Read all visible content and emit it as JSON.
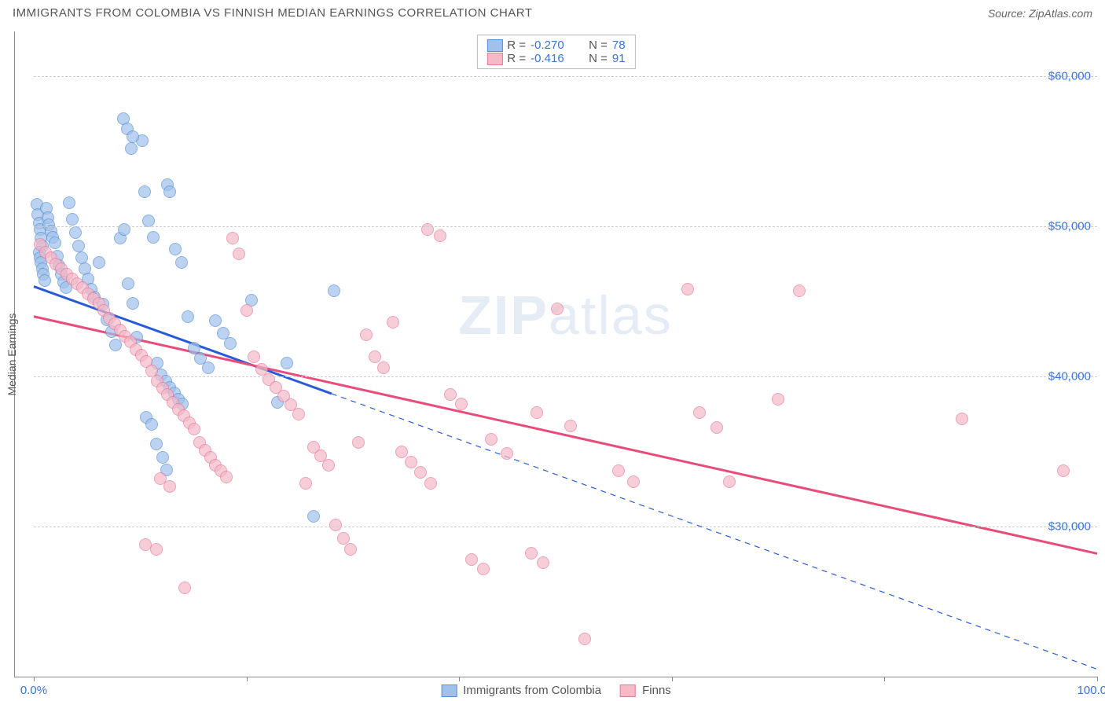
{
  "header": {
    "title": "IMMIGRANTS FROM COLOMBIA VS FINNISH MEDIAN EARNINGS CORRELATION CHART",
    "source": "Source: ZipAtlas.com"
  },
  "watermark": {
    "bold": "ZIP",
    "rest": "atlas"
  },
  "chart": {
    "type": "scatter",
    "ylabel": "Median Earnings",
    "background_color": "#ffffff",
    "grid_color": "#cccccc",
    "axis_line_color": "#888888",
    "tick_label_color": "#3874d6",
    "xlim": [
      0,
      100
    ],
    "ylim": [
      20000,
      63000
    ],
    "xticks_pct": [
      0,
      20,
      40,
      60,
      80,
      100
    ],
    "xtick_labels": {
      "first": "0.0%",
      "last": "100.0%"
    },
    "yticks": [
      30000,
      40000,
      50000,
      60000
    ],
    "ytick_labels": [
      "$30,000",
      "$40,000",
      "$50,000",
      "$60,000"
    ],
    "marker_radius": 8,
    "marker_fill_opacity": 0.35,
    "marker_stroke_width": 1.3,
    "series": [
      {
        "key": "colombia",
        "label": "Immigrants from Colombia",
        "color_fill": "#9fc1ea",
        "color_stroke": "#5a8fd6",
        "trend_color": "#2a5bd7",
        "trend_width": 3,
        "trend_dash_after_x": 28,
        "trend_start": [
          0,
          46000
        ],
        "trend_end": [
          100,
          20500
        ],
        "R": "-0.270",
        "N": "78",
        "points": [
          [
            0.3,
            51500
          ],
          [
            0.4,
            50800
          ],
          [
            0.5,
            50200
          ],
          [
            0.6,
            49800
          ],
          [
            0.7,
            49200
          ],
          [
            0.8,
            48700
          ],
          [
            0.5,
            48300
          ],
          [
            0.6,
            47900
          ],
          [
            0.7,
            47600
          ],
          [
            0.8,
            47200
          ],
          [
            0.9,
            46800
          ],
          [
            1.0,
            46400
          ],
          [
            1.2,
            51200
          ],
          [
            1.3,
            50600
          ],
          [
            1.4,
            50100
          ],
          [
            1.6,
            49700
          ],
          [
            1.8,
            49300
          ],
          [
            2.0,
            48900
          ],
          [
            2.2,
            48000
          ],
          [
            2.4,
            47400
          ],
          [
            2.6,
            46800
          ],
          [
            2.8,
            46300
          ],
          [
            3.0,
            45900
          ],
          [
            3.3,
            51600
          ],
          [
            3.6,
            50500
          ],
          [
            3.9,
            49600
          ],
          [
            4.2,
            48700
          ],
          [
            4.5,
            47900
          ],
          [
            4.8,
            47200
          ],
          [
            5.1,
            46500
          ],
          [
            5.4,
            45800
          ],
          [
            5.7,
            45300
          ],
          [
            6.1,
            47600
          ],
          [
            6.5,
            44800
          ],
          [
            6.9,
            43800
          ],
          [
            7.3,
            43000
          ],
          [
            7.7,
            42100
          ],
          [
            8.1,
            49200
          ],
          [
            8.5,
            49800
          ],
          [
            8.9,
            46200
          ],
          [
            9.3,
            44900
          ],
          [
            9.7,
            42600
          ],
          [
            10.2,
            55700
          ],
          [
            10.4,
            52300
          ],
          [
            10.8,
            50400
          ],
          [
            11.2,
            49300
          ],
          [
            11.6,
            40900
          ],
          [
            12.0,
            40100
          ],
          [
            12.4,
            39700
          ],
          [
            12.8,
            39300
          ],
          [
            13.2,
            38900
          ],
          [
            13.6,
            38500
          ],
          [
            14.0,
            38200
          ],
          [
            8.4,
            57200
          ],
          [
            8.8,
            56500
          ],
          [
            9.3,
            56000
          ],
          [
            9.2,
            55200
          ],
          [
            10.6,
            37300
          ],
          [
            11.1,
            36800
          ],
          [
            11.5,
            35500
          ],
          [
            12.1,
            34600
          ],
          [
            12.5,
            33800
          ],
          [
            12.6,
            52800
          ],
          [
            12.8,
            52300
          ],
          [
            13.3,
            48500
          ],
          [
            13.9,
            47600
          ],
          [
            14.5,
            44000
          ],
          [
            15.1,
            41900
          ],
          [
            15.7,
            41200
          ],
          [
            16.4,
            40600
          ],
          [
            17.1,
            43700
          ],
          [
            17.8,
            42900
          ],
          [
            18.5,
            42200
          ],
          [
            26.3,
            30700
          ],
          [
            28.2,
            45700
          ],
          [
            22.9,
            38300
          ],
          [
            23.8,
            40900
          ],
          [
            20.5,
            45100
          ]
        ]
      },
      {
        "key": "finns",
        "label": "Finns",
        "color_fill": "#f5b9c8",
        "color_stroke": "#e87b9a",
        "trend_color": "#e84c7a",
        "trend_width": 3,
        "trend_dash_after_x": 100,
        "trend_start": [
          0,
          44000
        ],
        "trend_end": [
          100,
          28200
        ],
        "R": "-0.416",
        "N": "91",
        "points": [
          [
            0.6,
            48800
          ],
          [
            1.1,
            48300
          ],
          [
            1.6,
            47900
          ],
          [
            2.1,
            47500
          ],
          [
            2.6,
            47200
          ],
          [
            3.1,
            46800
          ],
          [
            3.6,
            46500
          ],
          [
            4.1,
            46200
          ],
          [
            4.6,
            45900
          ],
          [
            5.1,
            45500
          ],
          [
            5.6,
            45200
          ],
          [
            6.1,
            44900
          ],
          [
            6.6,
            44400
          ],
          [
            7.1,
            43900
          ],
          [
            7.6,
            43500
          ],
          [
            8.1,
            43100
          ],
          [
            8.6,
            42700
          ],
          [
            9.1,
            42300
          ],
          [
            9.6,
            41800
          ],
          [
            10.1,
            41400
          ],
          [
            10.6,
            41000
          ],
          [
            11.1,
            40400
          ],
          [
            11.6,
            39700
          ],
          [
            12.1,
            39200
          ],
          [
            12.6,
            38800
          ],
          [
            13.1,
            38300
          ],
          [
            13.6,
            37800
          ],
          [
            14.1,
            37400
          ],
          [
            14.6,
            36900
          ],
          [
            15.1,
            36500
          ],
          [
            15.6,
            35600
          ],
          [
            16.1,
            35100
          ],
          [
            16.6,
            34600
          ],
          [
            17.1,
            34100
          ],
          [
            17.6,
            33700
          ],
          [
            18.1,
            33300
          ],
          [
            10.5,
            28800
          ],
          [
            11.5,
            28500
          ],
          [
            14.2,
            25900
          ],
          [
            11.9,
            33200
          ],
          [
            12.8,
            32700
          ],
          [
            18.7,
            49200
          ],
          [
            19.3,
            48200
          ],
          [
            20.0,
            44400
          ],
          [
            20.7,
            41300
          ],
          [
            21.4,
            40500
          ],
          [
            22.1,
            39800
          ],
          [
            22.8,
            39300
          ],
          [
            23.5,
            38700
          ],
          [
            24.2,
            38100
          ],
          [
            24.9,
            37500
          ],
          [
            25.6,
            32900
          ],
          [
            26.3,
            35300
          ],
          [
            27.0,
            34700
          ],
          [
            27.7,
            34100
          ],
          [
            28.4,
            30100
          ],
          [
            29.1,
            29200
          ],
          [
            29.8,
            28500
          ],
          [
            30.5,
            35600
          ],
          [
            31.3,
            42800
          ],
          [
            32.1,
            41300
          ],
          [
            32.9,
            40600
          ],
          [
            33.8,
            43600
          ],
          [
            34.6,
            35000
          ],
          [
            35.5,
            34300
          ],
          [
            36.4,
            33600
          ],
          [
            37.3,
            32900
          ],
          [
            38.2,
            49400
          ],
          [
            39.2,
            38800
          ],
          [
            40.2,
            38200
          ],
          [
            41.2,
            27800
          ],
          [
            42.3,
            27200
          ],
          [
            37.0,
            49800
          ],
          [
            44.5,
            34900
          ],
          [
            43.0,
            35800
          ],
          [
            46.8,
            28200
          ],
          [
            47.9,
            27600
          ],
          [
            49.2,
            44500
          ],
          [
            50.5,
            36700
          ],
          [
            51.8,
            22500
          ],
          [
            47.3,
            37600
          ],
          [
            55.0,
            33700
          ],
          [
            56.4,
            33000
          ],
          [
            61.5,
            45800
          ],
          [
            62.6,
            37600
          ],
          [
            64.2,
            36600
          ],
          [
            87.3,
            37200
          ],
          [
            70.0,
            38500
          ],
          [
            72.0,
            45700
          ],
          [
            96.8,
            33700
          ],
          [
            65.4,
            33000
          ]
        ]
      }
    ]
  },
  "legend_top_labels": {
    "R": "R =",
    "N": "N ="
  },
  "legend_bottom": [
    {
      "series": "colombia"
    },
    {
      "series": "finns"
    }
  ]
}
